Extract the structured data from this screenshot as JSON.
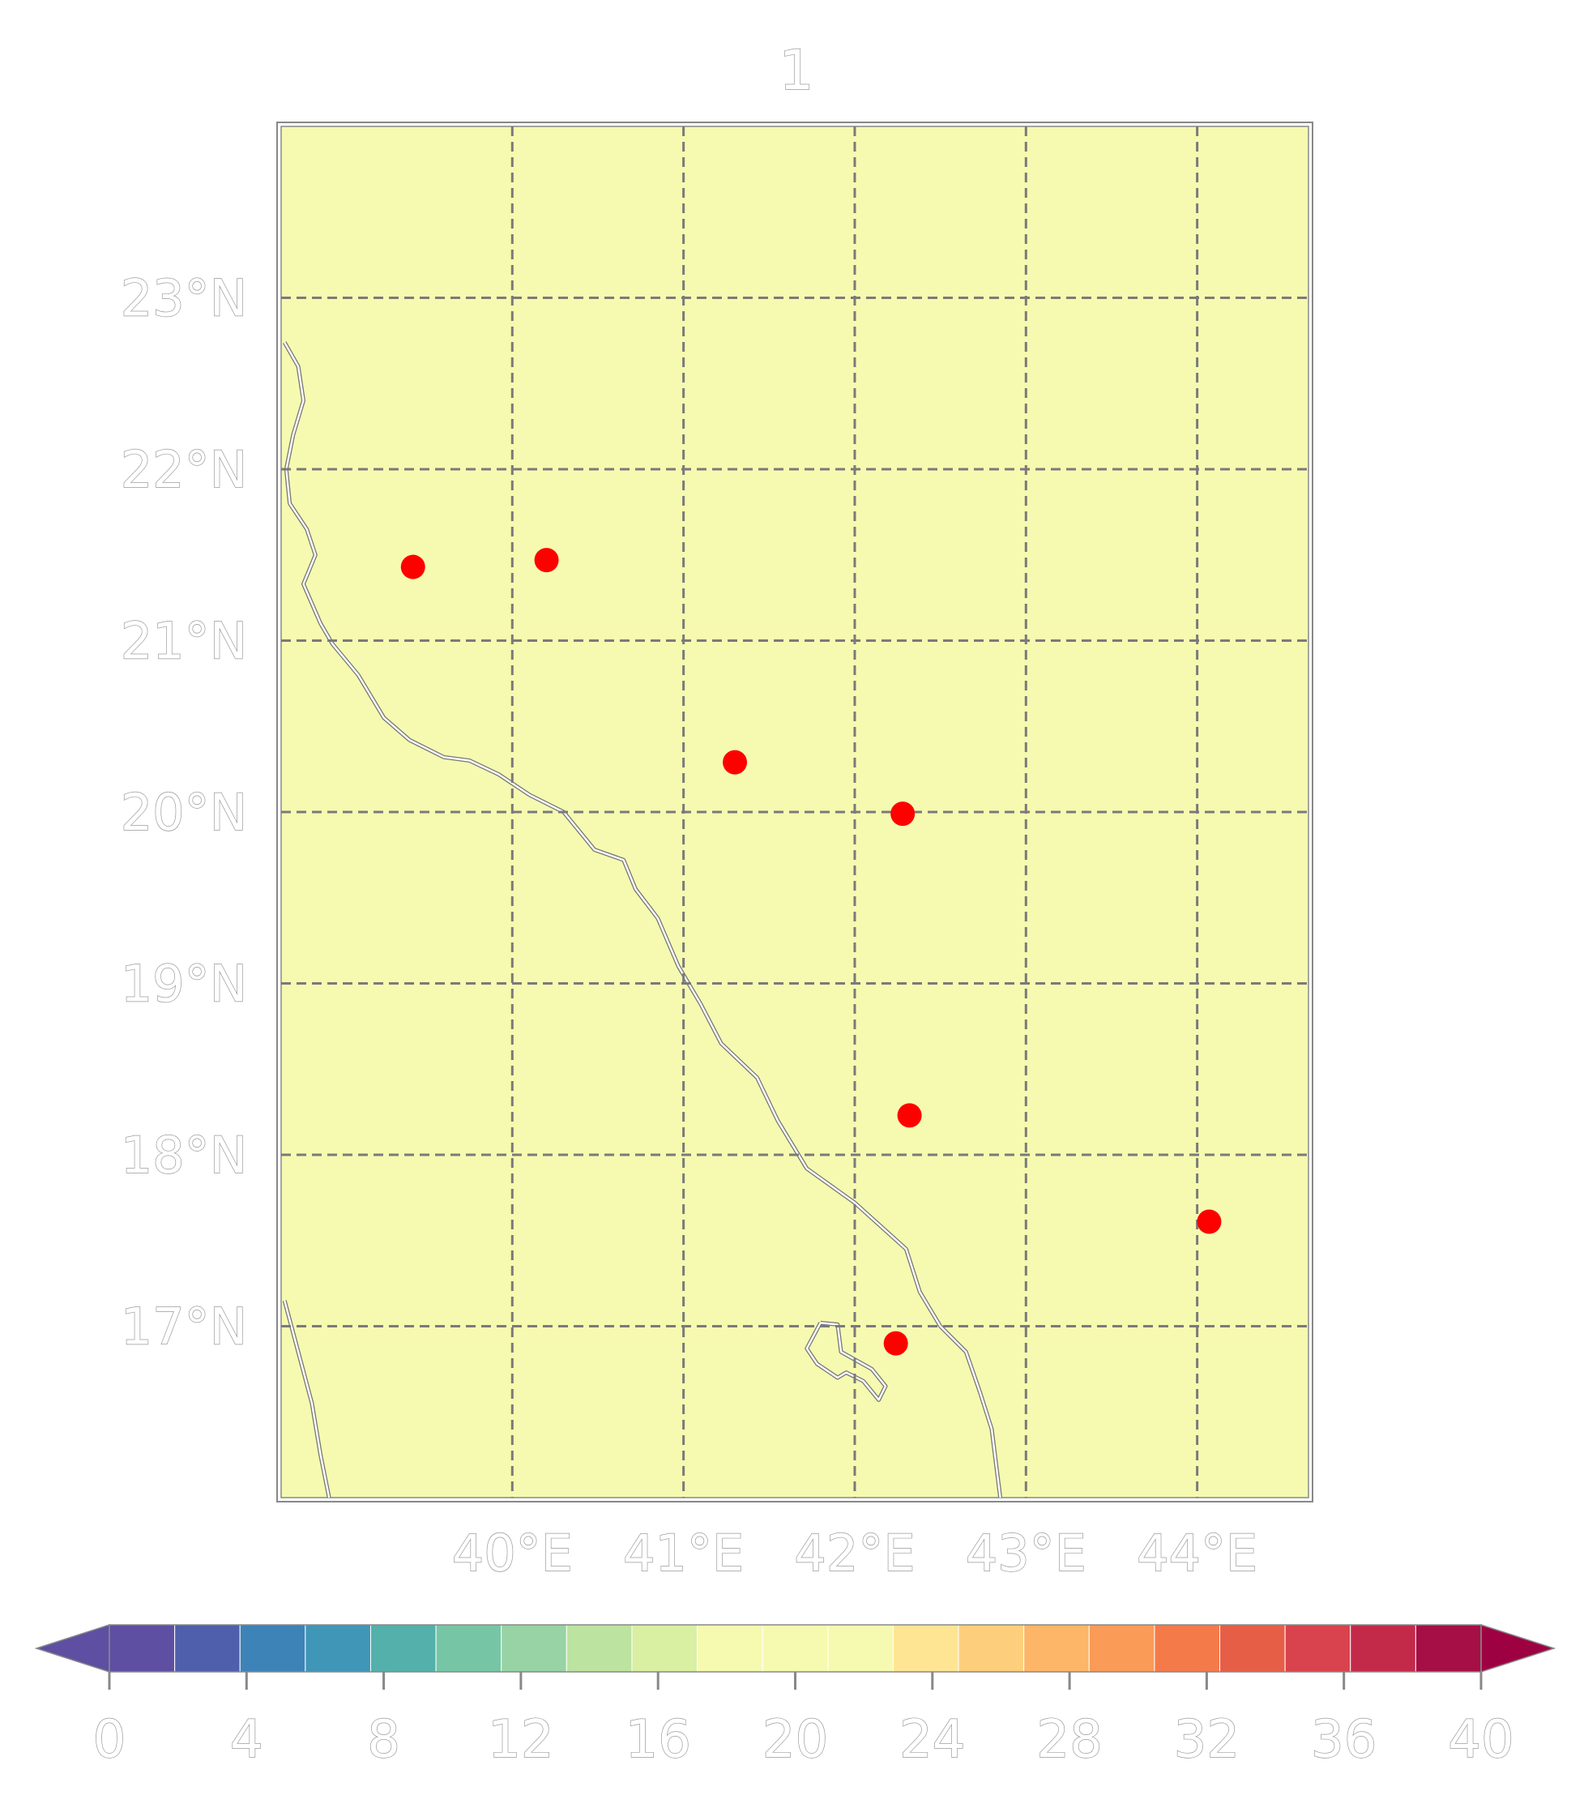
{
  "title": "1",
  "map": {
    "background": "#f6fab0",
    "lon_range": [
      38.65,
      44.65
    ],
    "lat_range": [
      16.0,
      24.0
    ],
    "lat_ticks": [
      {
        "value": 23,
        "label": "23°N"
      },
      {
        "value": 22,
        "label": "22°N"
      },
      {
        "value": 21,
        "label": "21°N"
      },
      {
        "value": 20,
        "label": "20°N"
      },
      {
        "value": 19,
        "label": "19°N"
      },
      {
        "value": 18,
        "label": "18°N"
      },
      {
        "value": 17,
        "label": "17°N"
      }
    ],
    "lon_ticks": [
      {
        "value": 40,
        "label": "40°E"
      },
      {
        "value": 41,
        "label": "41°E"
      },
      {
        "value": 42,
        "label": "42°E"
      },
      {
        "value": 43,
        "label": "43°E"
      },
      {
        "value": 44,
        "label": "44°E"
      }
    ],
    "stations": [
      {
        "lon": 39.42,
        "lat": 21.43
      },
      {
        "lon": 40.2,
        "lat": 21.47
      },
      {
        "lon": 41.3,
        "lat": 20.29
      },
      {
        "lon": 42.28,
        "lat": 19.99
      },
      {
        "lon": 42.32,
        "lat": 18.23
      },
      {
        "lon": 42.24,
        "lat": 16.9
      },
      {
        "lon": 44.07,
        "lat": 17.61
      }
    ],
    "station_color": "#ff0000",
    "coastline": [
      [
        38.67,
        22.74
      ],
      [
        38.75,
        22.6
      ],
      [
        38.78,
        22.4
      ],
      [
        38.72,
        22.2
      ],
      [
        38.68,
        22.0
      ],
      [
        38.7,
        21.8
      ],
      [
        38.8,
        21.65
      ],
      [
        38.85,
        21.5
      ],
      [
        38.78,
        21.33
      ],
      [
        38.88,
        21.1
      ],
      [
        38.95,
        20.98
      ],
      [
        39.1,
        20.8
      ],
      [
        39.25,
        20.55
      ],
      [
        39.4,
        20.42
      ],
      [
        39.6,
        20.32
      ],
      [
        39.75,
        20.3
      ],
      [
        39.92,
        20.22
      ],
      [
        40.1,
        20.1
      ],
      [
        40.3,
        20.0
      ],
      [
        40.48,
        19.78
      ],
      [
        40.65,
        19.72
      ],
      [
        40.72,
        19.55
      ],
      [
        40.85,
        19.38
      ],
      [
        40.97,
        19.1
      ],
      [
        41.1,
        18.88
      ],
      [
        41.22,
        18.65
      ],
      [
        41.43,
        18.45
      ],
      [
        41.55,
        18.2
      ],
      [
        41.72,
        17.92
      ],
      [
        41.93,
        17.77
      ],
      [
        42.0,
        17.72
      ],
      [
        42.3,
        17.45
      ],
      [
        42.38,
        17.2
      ],
      [
        42.5,
        17.0
      ],
      [
        42.65,
        16.85
      ],
      [
        42.73,
        16.62
      ],
      [
        42.8,
        16.4
      ],
      [
        42.85,
        16.0
      ]
    ],
    "coastline_west": [
      [
        38.67,
        17.15
      ],
      [
        38.75,
        16.85
      ],
      [
        38.83,
        16.55
      ],
      [
        38.88,
        16.25
      ],
      [
        38.93,
        16.0
      ]
    ],
    "island": [
      [
        41.8,
        17.02
      ],
      [
        41.9,
        17.01
      ],
      [
        41.92,
        16.85
      ],
      [
        42.1,
        16.75
      ],
      [
        42.18,
        16.65
      ],
      [
        42.14,
        16.57
      ],
      [
        42.05,
        16.68
      ],
      [
        41.95,
        16.73
      ],
      [
        41.9,
        16.7
      ],
      [
        41.78,
        16.78
      ],
      [
        41.72,
        16.87
      ],
      [
        41.8,
        17.02
      ]
    ]
  },
  "colorbar": {
    "ticks": [
      "0",
      "4",
      "8",
      "12",
      "16",
      "20",
      "24",
      "28",
      "32",
      "36",
      "40"
    ],
    "vmin": 0,
    "vmax": 40,
    "step": 2,
    "colors": [
      "#5e4fa2",
      "#4f5fab",
      "#3d83b8",
      "#3f96b7",
      "#54b0aa",
      "#76c6a5",
      "#97d3a4",
      "#bde3a0",
      "#d9efa2",
      "#f6fab0",
      "#f6fab0",
      "#f6fab0",
      "#fee593",
      "#fdcf7d",
      "#fdb567",
      "#fa9b58",
      "#f57a4a",
      "#e75e47",
      "#d9434d",
      "#c32a4a",
      "#a60f45"
    ],
    "extend_low_color": "#5e4fa2",
    "extend_high_color": "#9e0142"
  }
}
